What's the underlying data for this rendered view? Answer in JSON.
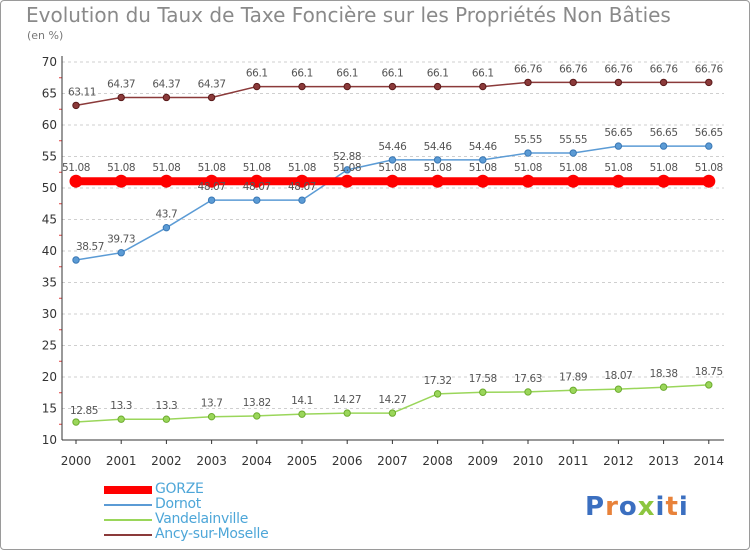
{
  "header": {
    "title": "Evolution du Taux de Taxe Foncière sur les Propriétés Non Bâties",
    "unit": "(en %)"
  },
  "brand": {
    "text": "Proxiti",
    "letter_colors": [
      "#3b6fc0",
      "#e8823a",
      "#3b6fc0",
      "#8cc63f",
      "#3b6fc0",
      "#e8823a",
      "#3b6fc0"
    ]
  },
  "chart_data": {
    "type": "line",
    "title": "Evolution du Taux de Taxe Foncière sur les Propriétés Non Bâties",
    "ylabel": "(en %)",
    "xlabel": "",
    "ylim": [
      10,
      70
    ],
    "y_ticks": [
      10,
      15,
      20,
      25,
      30,
      35,
      40,
      45,
      50,
      55,
      60,
      65,
      70
    ],
    "grid": "horizontal",
    "legend_position": "bottom-left",
    "categories": [
      "2000",
      "2001",
      "2002",
      "2003",
      "2004",
      "2005",
      "2006",
      "2007",
      "2008",
      "2009",
      "2010",
      "2011",
      "2012",
      "2013",
      "2014"
    ],
    "series": [
      {
        "name": "GORZE",
        "color": "#ff0000",
        "values": [
          51.08,
          51.08,
          51.08,
          51.08,
          51.08,
          51.08,
          51.08,
          51.08,
          51.08,
          51.08,
          51.08,
          51.08,
          51.08,
          51.08,
          51.08
        ],
        "labels": [
          "51.08",
          "51.08",
          "51.08",
          "51.08",
          "51.08",
          "51.08",
          "51.08",
          "51.08",
          "51.08",
          "51.08",
          "51.08",
          "51.08",
          "51.08",
          "51.08",
          "51.08"
        ]
      },
      {
        "name": "Dornot",
        "color": "#5b9bd5",
        "values": [
          38.57,
          39.73,
          43.7,
          48.07,
          48.07,
          48.07,
          52.88,
          54.46,
          54.46,
          54.46,
          55.55,
          55.55,
          56.65,
          56.65,
          56.65
        ],
        "labels": [
          "38.57",
          "39.73",
          "43.7",
          "48.07",
          "48.07",
          "48.07",
          "52.88",
          "54.46",
          "54.46",
          "54.46",
          "55.55",
          "55.55",
          "56.65",
          "56.65",
          "56.65"
        ]
      },
      {
        "name": "Vandelainville",
        "color": "#9ad65a",
        "values": [
          12.85,
          13.3,
          13.3,
          13.7,
          13.82,
          14.1,
          14.27,
          14.27,
          17.32,
          17.58,
          17.63,
          17.89,
          18.07,
          18.38,
          18.75
        ],
        "labels": [
          "12.85",
          "13.3",
          "13.3",
          "13.7",
          "13.82",
          "14.1",
          "14.27",
          "14.27",
          "17.32",
          "17.58",
          "17.63",
          "17.89",
          "18.07",
          "18.38",
          "18.75"
        ]
      },
      {
        "name": "Ancy-sur-Moselle",
        "color": "#8b3a3a",
        "values": [
          63.11,
          64.37,
          64.37,
          64.37,
          66.1,
          66.1,
          66.1,
          66.1,
          66.1,
          66.1,
          66.76,
          66.76,
          66.76,
          66.76,
          66.76
        ],
        "labels": [
          "63.11",
          "64.37",
          "64.37",
          "64.37",
          "66.1",
          "66.1",
          "66.1",
          "66.1",
          "66.1",
          "66.1",
          "66.76",
          "66.76",
          "66.76",
          "66.76",
          "66.76"
        ]
      }
    ]
  }
}
